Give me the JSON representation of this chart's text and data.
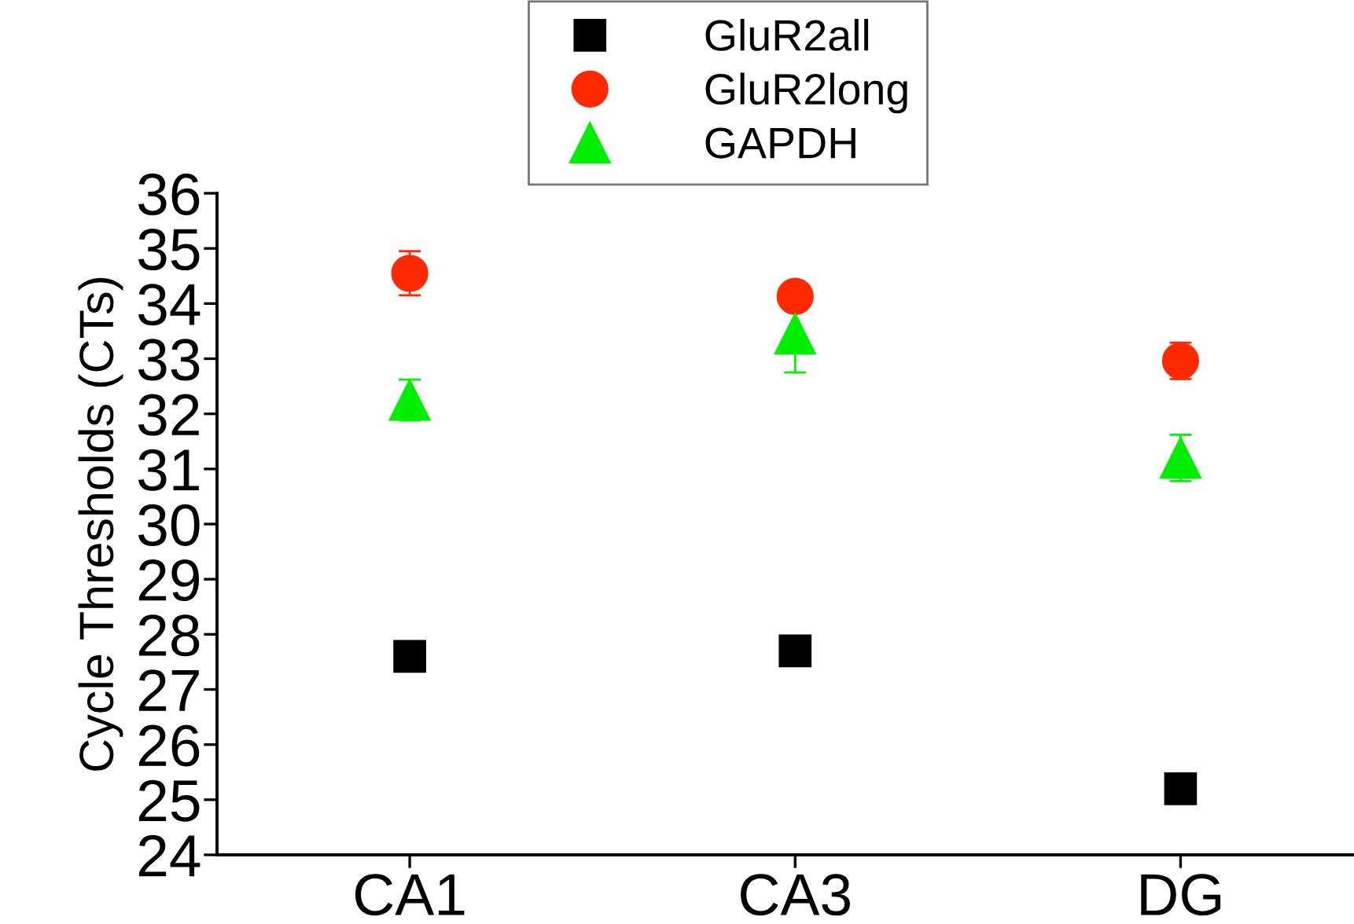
{
  "chart_data": {
    "type": "scatter",
    "ylabel": "Cycle Thresholds (CTs)",
    "categories": [
      "CA1",
      "CA3",
      "DG"
    ],
    "series": [
      {
        "name": "GluR2all",
        "color": "#000000",
        "marker": "square",
        "values": [
          27.6,
          27.7,
          25.2
        ]
      },
      {
        "name": "GluR2long",
        "color": "#ff2a00",
        "marker": "circle",
        "values": [
          34.55,
          34.13,
          32.96
        ],
        "errors": [
          0.4,
          null,
          0.33
        ]
      },
      {
        "name": "GAPDH",
        "color": "#00ee00",
        "marker": "triangle",
        "values": [
          32.25,
          33.45,
          31.2
        ],
        "errors": [
          0.37,
          0.7,
          0.42
        ]
      }
    ],
    "ylim": [
      24,
      36
    ],
    "yticks": [
      24,
      25,
      26,
      27,
      28,
      29,
      30,
      31,
      32,
      33,
      34,
      35,
      36
    ],
    "grid": false,
    "legend": "top"
  }
}
